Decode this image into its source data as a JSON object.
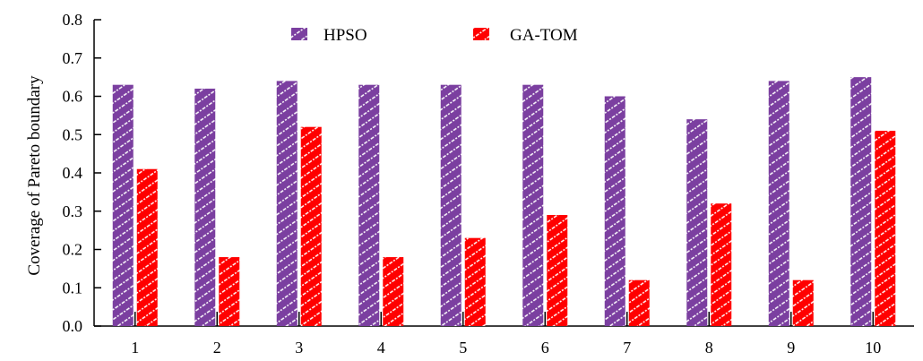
{
  "chart_data": {
    "type": "bar",
    "categories": [
      "1",
      "2",
      "3",
      "4",
      "5",
      "6",
      "7",
      "8",
      "9",
      "10"
    ],
    "series": [
      {
        "name": "HPSO",
        "values": [
          0.63,
          0.62,
          0.64,
          0.63,
          0.63,
          0.63,
          0.6,
          0.54,
          0.64,
          0.65
        ],
        "color": "#7B3FA0"
      },
      {
        "name": "GA-TOM",
        "values": [
          0.41,
          0.18,
          0.52,
          0.18,
          0.23,
          0.29,
          0.12,
          0.32,
          0.12,
          0.51
        ],
        "color": "#FF0000"
      }
    ],
    "ylabel": "Coverage of Pareto boundary",
    "xlabel": "",
    "ylim": [
      0.0,
      0.8
    ],
    "yticks": [
      "0.0",
      "0.1",
      "0.2",
      "0.3",
      "0.4",
      "0.5",
      "0.6",
      "0.7",
      "0.8"
    ],
    "grid": false,
    "legend_position": "top"
  }
}
